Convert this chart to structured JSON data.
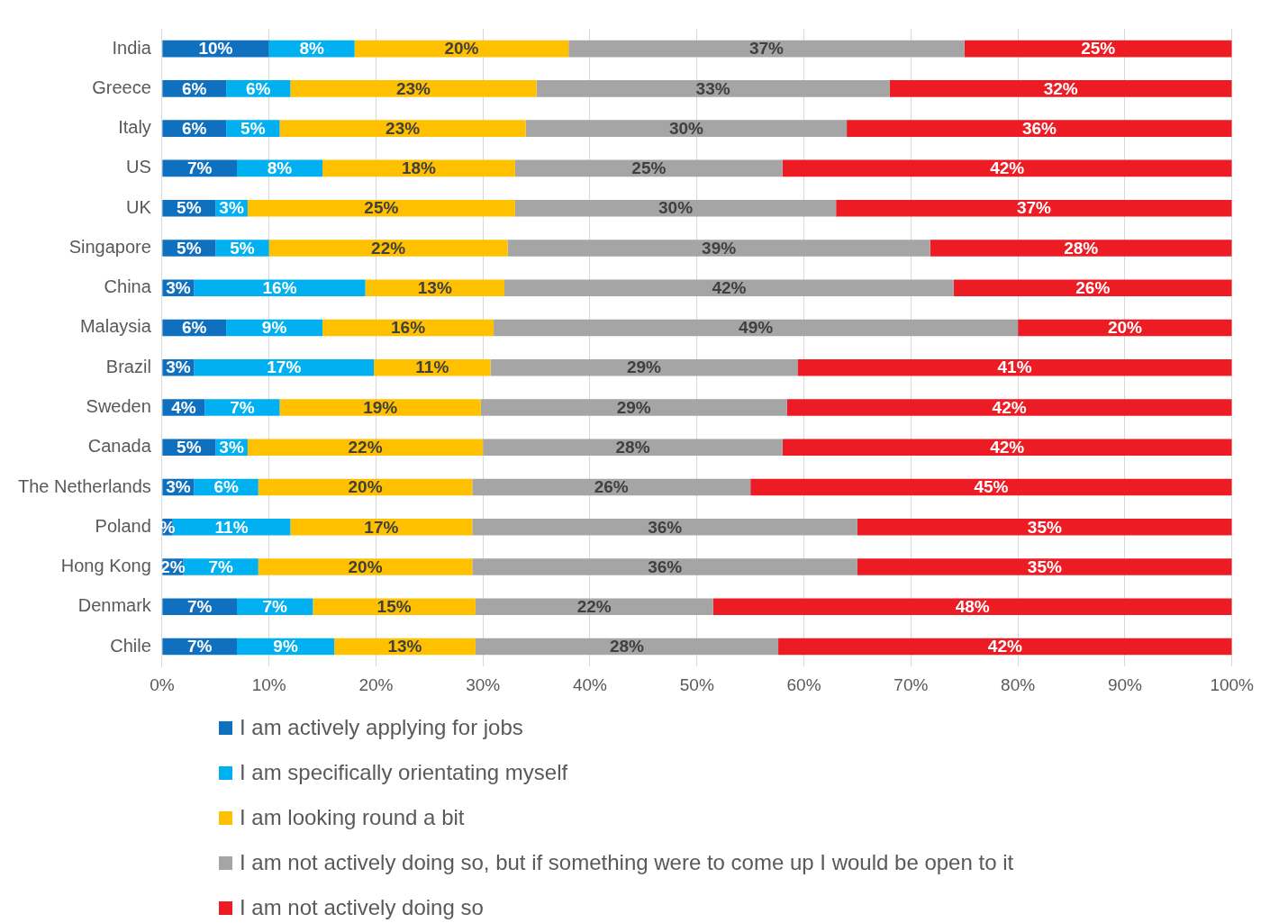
{
  "chart_data": {
    "type": "bar",
    "orientation": "horizontal",
    "stacked": true,
    "categories": [
      "India",
      "Greece",
      "Italy",
      "US",
      "UK",
      "Singapore",
      "China",
      "Malaysia",
      "Brazil",
      "Sweden",
      "Canada",
      "The Netherlands",
      "Poland",
      "Hong Kong",
      "Denmark",
      "Chile"
    ],
    "xlim": [
      0,
      100
    ],
    "xticks": [
      {
        "value": 0,
        "label": "0%"
      },
      {
        "value": 10,
        "label": "10%"
      },
      {
        "value": 20,
        "label": "20%"
      },
      {
        "value": 30,
        "label": "30%"
      },
      {
        "value": 40,
        "label": "40%"
      },
      {
        "value": 50,
        "label": "50%"
      },
      {
        "value": 60,
        "label": "60%"
      },
      {
        "value": 70,
        "label": "70%"
      },
      {
        "value": 80,
        "label": "80%"
      },
      {
        "value": 90,
        "label": "90%"
      },
      {
        "value": 100,
        "label": "100%"
      }
    ],
    "grid": "x",
    "legend": "bottom",
    "series": [
      {
        "name": "I am actively applying for jobs",
        "color": "#0f70c0",
        "values": [
          10,
          6,
          6,
          7,
          5,
          5,
          3,
          6,
          3,
          4,
          5,
          3,
          1,
          2,
          7,
          7
        ],
        "value_labels": [
          "10%",
          "6%",
          "6%",
          "7%",
          "5%",
          "5%",
          "3%",
          "6%",
          "3%",
          "4%",
          "5%",
          "3%",
          "%",
          "2%",
          "7%",
          "7%"
        ]
      },
      {
        "name": "I am specifically orientating myself",
        "color": "#00b0f0",
        "values": [
          8,
          6,
          5,
          8,
          3,
          5,
          16,
          9,
          16.8,
          7,
          3,
          6,
          11,
          7,
          7.1,
          9.1
        ],
        "value_labels": [
          "8%",
          "6%",
          "5%",
          "8%",
          "3%",
          "5%",
          "16%",
          "9%",
          "17%",
          "7%",
          "3%",
          "6%",
          "11%",
          "7%",
          "7%",
          "9%"
        ]
      },
      {
        "name": "I am looking round a bit",
        "color": "#ffc000",
        "values": [
          20,
          23,
          23,
          18,
          25,
          22.3,
          13,
          16,
          10.9,
          18.8,
          22,
          20,
          17,
          20,
          15.2,
          13.2
        ],
        "value_labels": [
          "20%",
          "23%",
          "23%",
          "18%",
          "25%",
          "22%",
          "13%",
          "16%",
          "11%",
          "19%",
          "22%",
          "20%",
          "17%",
          "20%",
          "15%",
          "13%"
        ]
      },
      {
        "name": "I am not actively doing so, but if something were to come up I would be open to it",
        "color": "#a5a5a5",
        "values": [
          37,
          33,
          30,
          25,
          30,
          39.5,
          42,
          49,
          28.7,
          28.6,
          28,
          26,
          36,
          36,
          22.2,
          28.3
        ],
        "value_labels": [
          "37%",
          "33%",
          "30%",
          "25%",
          "30%",
          "39%",
          "42%",
          "49%",
          "29%",
          "29%",
          "28%",
          "26%",
          "36%",
          "36%",
          "22%",
          "28%"
        ]
      },
      {
        "name": "I am not actively doing so",
        "color": "#ed1c24",
        "values": [
          25,
          32,
          36,
          42,
          37,
          28.2,
          26,
          20,
          40.6,
          41.6,
          42,
          45,
          35,
          35,
          48.5,
          42.4
        ],
        "value_labels": [
          "25%",
          "32%",
          "36%",
          "42%",
          "37%",
          "28%",
          "26%",
          "20%",
          "41%",
          "42%",
          "42%",
          "45%",
          "35%",
          "35%",
          "48%",
          "42%"
        ]
      }
    ]
  }
}
